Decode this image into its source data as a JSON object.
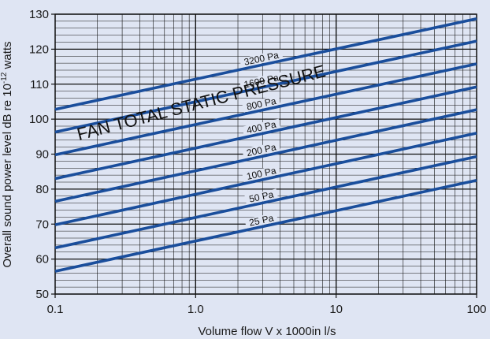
{
  "chart_data": {
    "type": "line",
    "xscale": "log",
    "xlim": [
      0.1,
      100
    ],
    "ylim": [
      50,
      130
    ],
    "xticks": [
      {
        "value": 0.1,
        "label": "0.1"
      },
      {
        "value": 1,
        "label": "1.0"
      },
      {
        "value": 10,
        "label": "10"
      },
      {
        "value": 100,
        "label": "100"
      }
    ],
    "yticks": [
      50,
      60,
      70,
      80,
      90,
      100,
      110,
      120,
      130
    ],
    "xlabel": "Volume flow V x 1000in l/s",
    "ylabel": {
      "main": "Overall sound power level dB re 10",
      "exponent": "-12",
      "unit": " watts"
    },
    "annotation": "FAN TOTAL STATIC PRESSURE",
    "grid": true,
    "line_color": "#1a4e9c",
    "background": "#dfe5f3",
    "series": [
      {
        "name": "25 Pa",
        "x": [
          0.1,
          100
        ],
        "y": [
          56.5,
          82.5
        ]
      },
      {
        "name": "50 Pa",
        "x": [
          0.1,
          100
        ],
        "y": [
          63.2,
          89.3
        ]
      },
      {
        "name": "100 Pa",
        "x": [
          0.1,
          100
        ],
        "y": [
          69.8,
          96.0
        ]
      },
      {
        "name": "200 Pa",
        "x": [
          0.1,
          100
        ],
        "y": [
          76.5,
          102.7
        ]
      },
      {
        "name": "400 Pa",
        "x": [
          0.1,
          100
        ],
        "y": [
          83.0,
          109.2
        ]
      },
      {
        "name": "800 Pa",
        "x": [
          0.1,
          100
        ],
        "y": [
          89.8,
          115.8
        ]
      },
      {
        "name": "1600 Pa",
        "x": [
          0.1,
          100
        ],
        "y": [
          96.3,
          122.3
        ]
      },
      {
        "name": "3200 Pa",
        "x": [
          0.1,
          100
        ],
        "y": [
          102.8,
          128.7
        ]
      }
    ]
  }
}
